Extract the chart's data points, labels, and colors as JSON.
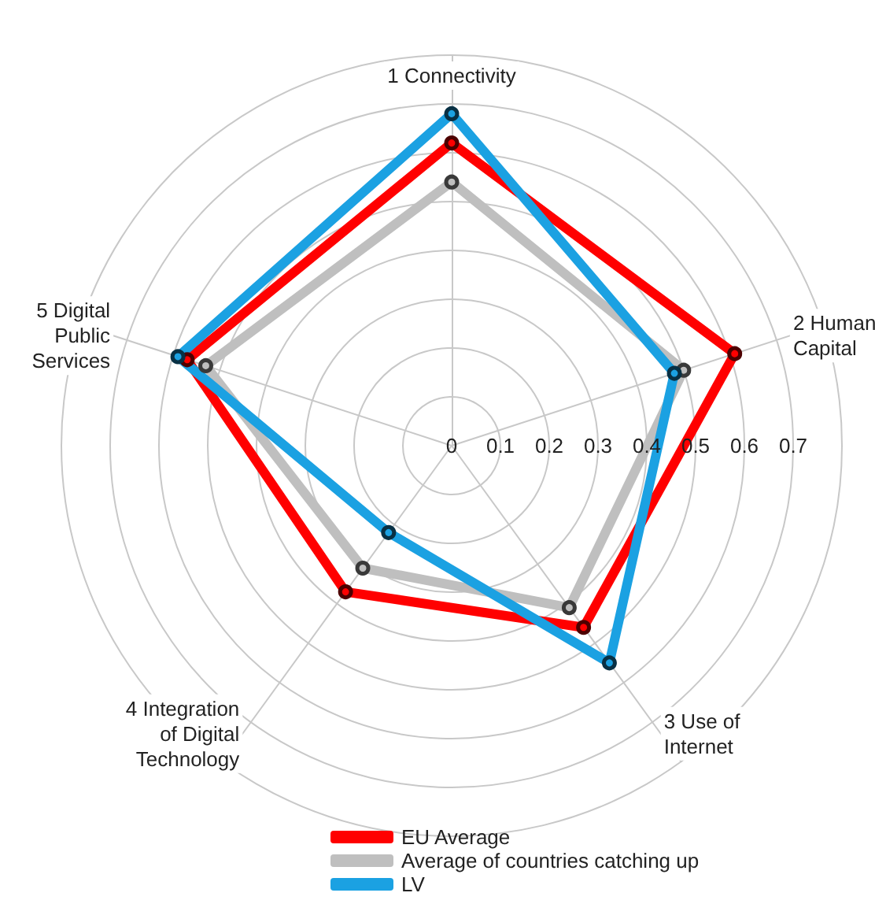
{
  "chart_data": {
    "type": "radar",
    "categories": [
      "1 Connectivity",
      "2 Human\nCapital",
      "3 Use of\nInternet",
      "4 Integration\nof Digital\nTechnology",
      "5 Digital\nPublic\nServices"
    ],
    "series": [
      {
        "name": "EU Average",
        "color": "#ff0000",
        "values": [
          0.62,
          0.61,
          0.46,
          0.37,
          0.57
        ]
      },
      {
        "name": "Average of countries catching up",
        "color": "#bfbfbf",
        "values": [
          0.54,
          0.5,
          0.41,
          0.31,
          0.53
        ]
      },
      {
        "name": "LV",
        "color": "#1ba1e2",
        "values": [
          0.68,
          0.48,
          0.55,
          0.22,
          0.59
        ]
      }
    ],
    "ylim": [
      0,
      0.8
    ],
    "yticks": [
      0,
      0.1,
      0.2,
      0.3,
      0.4,
      0.5,
      0.6,
      0.7
    ],
    "grid": true,
    "legend": "bottom",
    "marker": "circle",
    "line_style": "solid"
  }
}
